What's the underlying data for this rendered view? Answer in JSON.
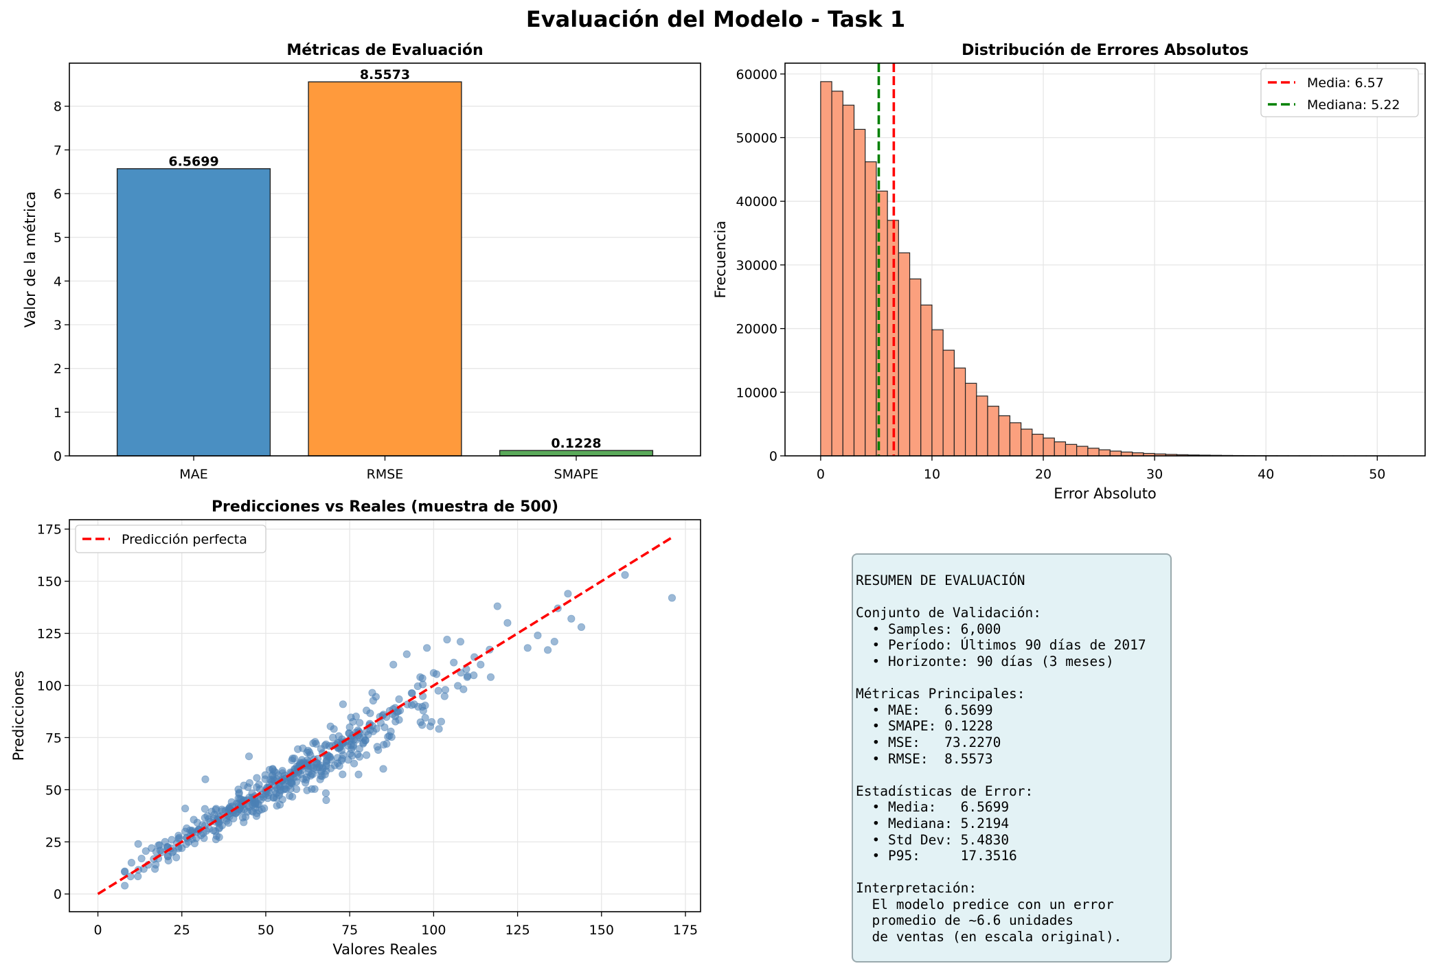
{
  "suptitle": "Evaluación del Modelo - Task 1",
  "chart_data": [
    {
      "type": "bar",
      "title": "Métricas de Evaluación",
      "xlabel": "",
      "ylabel": "Valor de la métrica",
      "categories": [
        "MAE",
        "RMSE",
        "SMAPE"
      ],
      "values": [
        6.5699,
        8.5573,
        0.1228
      ],
      "value_labels": [
        "6.5699",
        "8.5573",
        "0.1228"
      ],
      "colors": [
        "#4a8fc2",
        "#ff9a3c",
        "#5aaa5a"
      ],
      "ylim": [
        0,
        8.985
      ],
      "yticks": [
        0,
        1,
        2,
        3,
        4,
        5,
        6,
        7,
        8
      ],
      "grid": true
    },
    {
      "type": "bar",
      "subtype": "histogram",
      "title": "Distribución de Errores Absolutos",
      "xlabel": "Error Absoluto",
      "ylabel": "Frecuencia",
      "bin_width": 1.0,
      "bin_start": 0,
      "counts": [
        58800,
        57300,
        55100,
        51300,
        46200,
        41600,
        37000,
        31900,
        27800,
        23700,
        19800,
        16600,
        13800,
        11400,
        9400,
        7800,
        6300,
        5200,
        4200,
        3400,
        2800,
        2200,
        1800,
        1500,
        1200,
        950,
        750,
        600,
        480,
        380,
        300,
        230,
        180,
        140,
        110,
        85,
        65,
        50,
        40,
        30,
        24,
        18,
        14,
        11,
        9,
        7,
        5,
        4,
        3,
        3,
        2,
        2
      ],
      "color": "#fba07e",
      "xlim": [
        -3.2,
        54.3
      ],
      "ylim": [
        0,
        61700
      ],
      "xticks": [
        0,
        10,
        20,
        30,
        40,
        50
      ],
      "yticks": [
        0,
        10000,
        20000,
        30000,
        40000,
        50000,
        60000
      ],
      "vlines": [
        {
          "label": "Media: 6.57",
          "x": 6.57,
          "color": "#ff0000"
        },
        {
          "label": "Mediana: 5.22",
          "x": 5.22,
          "color": "#008000"
        }
      ],
      "legend": "top-right",
      "grid": true
    },
    {
      "type": "scatter",
      "title": "Predicciones vs Reales (muestra de 500)",
      "xlabel": "Valores Reales",
      "ylabel": "Predicciones",
      "xlim": [
        -8.5,
        179.5
      ],
      "ylim": [
        -8.5,
        179.5
      ],
      "xticks": [
        0,
        25,
        50,
        75,
        100,
        125,
        150,
        175
      ],
      "yticks": [
        0,
        25,
        50,
        75,
        100,
        125,
        150,
        175
      ],
      "point_color": "#4a7fb5",
      "n_points": 500,
      "sample_points": [
        [
          171,
          142
        ],
        [
          157,
          153
        ],
        [
          144,
          128
        ],
        [
          141,
          132
        ],
        [
          140,
          144
        ],
        [
          137,
          137
        ],
        [
          134,
          117
        ],
        [
          131,
          124
        ],
        [
          128,
          118
        ],
        [
          122,
          130
        ],
        [
          119,
          138
        ],
        [
          117,
          104
        ],
        [
          114,
          110
        ],
        [
          110,
          104
        ],
        [
          108,
          121
        ],
        [
          106,
          111
        ],
        [
          104,
          122
        ],
        [
          100,
          106
        ],
        [
          98,
          118
        ],
        [
          96,
          104
        ],
        [
          92,
          115
        ],
        [
          90,
          88
        ],
        [
          88,
          110
        ],
        [
          86,
          72
        ],
        [
          85,
          60
        ],
        [
          84,
          85
        ],
        [
          82,
          78
        ],
        [
          80,
          88
        ],
        [
          78,
          75
        ],
        [
          75,
          80
        ],
        [
          73,
          91
        ],
        [
          72,
          70
        ],
        [
          70,
          75
        ],
        [
          68,
          45
        ],
        [
          67,
          60
        ],
        [
          65,
          72
        ],
        [
          63,
          68
        ],
        [
          60,
          62
        ],
        [
          58,
          65
        ],
        [
          55,
          58
        ],
        [
          54,
          52
        ],
        [
          52,
          55
        ],
        [
          50,
          48
        ],
        [
          48,
          40
        ],
        [
          46,
          45
        ],
        [
          45,
          66
        ],
        [
          44,
          37
        ],
        [
          42,
          48
        ],
        [
          40,
          42
        ],
        [
          38,
          40
        ],
        [
          36,
          34
        ],
        [
          35,
          30
        ],
        [
          33,
          36
        ],
        [
          32,
          55
        ],
        [
          30,
          31
        ],
        [
          28,
          30
        ],
        [
          27,
          25
        ],
        [
          26,
          41
        ],
        [
          25,
          22
        ],
        [
          24,
          28
        ],
        [
          22,
          26
        ],
        [
          21,
          16
        ],
        [
          20,
          25
        ],
        [
          19,
          20
        ],
        [
          18,
          17
        ],
        [
          17,
          12
        ],
        [
          16,
          22
        ],
        [
          15,
          14
        ],
        [
          13,
          17
        ],
        [
          12,
          24
        ],
        [
          10,
          15
        ]
      ],
      "reference_line": {
        "label": "Predicción perfecta",
        "from": [
          0,
          0
        ],
        "to": [
          171,
          171
        ],
        "color": "#ff0000"
      },
      "legend": "top-left",
      "grid": true
    }
  ],
  "summary": {
    "text": "RESUMEN DE EVALUACIÓN\n\nConjunto de Validación:\n  • Samples: 6,000\n  • Período: Últimos 90 días de 2017\n  • Horizonte: 90 días (3 meses)\n\nMétricas Principales:\n  • MAE:   6.5699\n  • SMAPE: 0.1228\n  • MSE:   73.2270\n  • RMSE:  8.5573\n\nEstadísticas de Error:\n  • Media:   6.5699\n  • Mediana: 5.2194\n  • Std Dev: 5.4830\n  • P95:     17.3516\n\nInterpretación:\n  El modelo predice con un error\n  promedio de ~6.6 unidades\n  de ventas (en escala original)."
  }
}
